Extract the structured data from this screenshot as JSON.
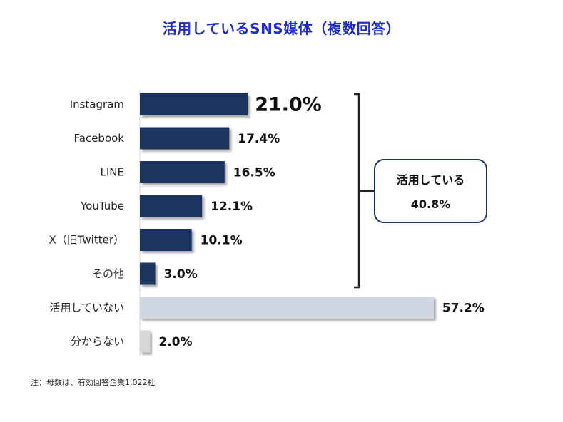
{
  "title": "活用しているSNS媒体（複数回答）",
  "chart_data": {
    "type": "bar",
    "orientation": "horizontal",
    "categories": [
      "Instagram",
      "Facebook",
      "LINE",
      "YouTube",
      "X（旧Twitter）",
      "その他",
      "活用していない",
      "分からない"
    ],
    "values": [
      21.0,
      17.4,
      16.5,
      12.1,
      10.1,
      3.0,
      57.2,
      2.0
    ],
    "value_labels": [
      "21.0%",
      "17.4%",
      "16.5%",
      "12.1%",
      "10.1%",
      "3.0%",
      "57.2%",
      "2.0%"
    ],
    "colors": [
      "#1f3560",
      "#1f3560",
      "#1f3560",
      "#1f3560",
      "#1f3560",
      "#1f3560",
      "#d0d6e2",
      "#d7d7d7"
    ],
    "xlim": [
      0,
      60
    ],
    "grid": false,
    "legend": "none"
  },
  "summary": {
    "label": "活用している",
    "value": "40.8%"
  },
  "note": "注：母数は、有効回答企業1,022社"
}
